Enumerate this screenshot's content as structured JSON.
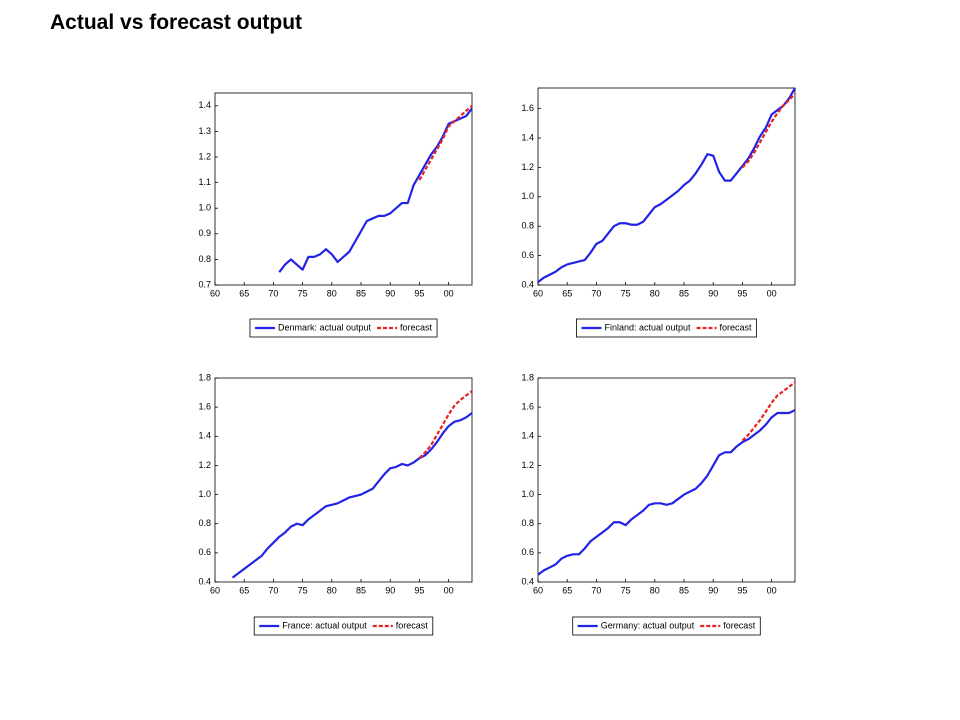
{
  "title": "Actual vs forecast output",
  "chart_data": [
    {
      "type": "line",
      "x": [
        1960,
        1961,
        1962,
        1963,
        1964,
        1965,
        1966,
        1967,
        1968,
        1969,
        1970,
        1971,
        1972,
        1973,
        1974,
        1975,
        1976,
        1977,
        1978,
        1979,
        1980,
        1981,
        1982,
        1983,
        1984,
        1985,
        1986,
        1987,
        1988,
        1989,
        1990,
        1991,
        1992,
        1993,
        1994,
        1995,
        1996,
        1997,
        1998,
        1999,
        2000,
        2001,
        2002,
        2003,
        2004
      ],
      "xlim": [
        1960,
        2004
      ],
      "xticks": [
        {
          "value": 1960,
          "label": "60"
        },
        {
          "value": 1965,
          "label": "65"
        },
        {
          "value": 1970,
          "label": "70"
        },
        {
          "value": 1975,
          "label": "75"
        },
        {
          "value": 1980,
          "label": "80"
        },
        {
          "value": 1985,
          "label": "85"
        },
        {
          "value": 1990,
          "label": "90"
        },
        {
          "value": 1995,
          "label": "95"
        },
        {
          "value": 2000,
          "label": "00"
        }
      ],
      "ylim": [
        0.7,
        1.45
      ],
      "yticks": [
        0.7,
        0.8,
        0.9,
        {
          "value": 1,
          "label": "1.0"
        },
        1.1,
        1.2,
        1.3,
        1.4
      ],
      "series": [
        {
          "name": "Denmark: actual output",
          "color": "#2323e8",
          "style": "solid",
          "values": [
            null,
            null,
            null,
            null,
            null,
            null,
            null,
            null,
            null,
            null,
            null,
            0.75,
            0.78,
            0.8,
            0.78,
            0.76,
            0.81,
            0.81,
            0.82,
            0.84,
            0.82,
            0.79,
            0.81,
            0.83,
            0.87,
            0.91,
            0.95,
            0.96,
            0.97,
            0.97,
            0.98,
            1.0,
            1.02,
            1.02,
            1.09,
            1.13,
            1.17,
            1.21,
            1.24,
            1.28,
            1.33,
            1.34,
            1.35,
            1.36,
            1.39
          ]
        },
        {
          "name": "forecast",
          "color": "#e82323",
          "style": "dashed",
          "values": [
            null,
            null,
            null,
            null,
            null,
            null,
            null,
            null,
            null,
            null,
            null,
            null,
            null,
            null,
            null,
            null,
            null,
            null,
            null,
            null,
            null,
            null,
            null,
            null,
            null,
            null,
            null,
            null,
            null,
            null,
            null,
            null,
            null,
            null,
            null,
            1.11,
            1.15,
            1.19,
            1.23,
            1.27,
            1.32,
            1.34,
            1.36,
            1.38,
            1.4
          ]
        }
      ]
    },
    {
      "type": "line",
      "x": [
        1960,
        1961,
        1962,
        1963,
        1964,
        1965,
        1966,
        1967,
        1968,
        1969,
        1970,
        1971,
        1972,
        1973,
        1974,
        1975,
        1976,
        1977,
        1978,
        1979,
        1980,
        1981,
        1982,
        1983,
        1984,
        1985,
        1986,
        1987,
        1988,
        1989,
        1990,
        1991,
        1992,
        1993,
        1994,
        1995,
        1996,
        1997,
        1998,
        1999,
        2000,
        2001,
        2002,
        2003,
        2004
      ],
      "xlim": [
        1960,
        2004
      ],
      "xticks": [
        {
          "value": 1960,
          "label": "60"
        },
        {
          "value": 1965,
          "label": "65"
        },
        {
          "value": 1970,
          "label": "70"
        },
        {
          "value": 1975,
          "label": "75"
        },
        {
          "value": 1980,
          "label": "80"
        },
        {
          "value": 1985,
          "label": "85"
        },
        {
          "value": 1990,
          "label": "90"
        },
        {
          "value": 1995,
          "label": "95"
        },
        {
          "value": 2000,
          "label": "00"
        }
      ],
      "ylim": [
        0.4,
        1.74
      ],
      "yticks": [
        0.4,
        0.6,
        0.8,
        {
          "value": 1,
          "label": "1.0"
        },
        1.2,
        1.4,
        1.6
      ],
      "series": [
        {
          "name": "Finland: actual output",
          "color": "#2323e8",
          "style": "solid",
          "values": [
            0.42,
            0.45,
            0.47,
            0.49,
            0.52,
            0.54,
            0.55,
            0.56,
            0.57,
            0.62,
            0.68,
            0.7,
            0.75,
            0.8,
            0.82,
            0.82,
            0.81,
            0.81,
            0.83,
            0.88,
            0.93,
            0.95,
            0.98,
            1.01,
            1.04,
            1.08,
            1.11,
            1.16,
            1.22,
            1.29,
            1.28,
            1.17,
            1.11,
            1.11,
            1.16,
            1.21,
            1.26,
            1.33,
            1.41,
            1.47,
            1.56,
            1.59,
            1.62,
            1.67,
            1.74
          ]
        },
        {
          "name": "forecast",
          "color": "#e82323",
          "style": "dashed",
          "values": [
            null,
            null,
            null,
            null,
            null,
            null,
            null,
            null,
            null,
            null,
            null,
            null,
            null,
            null,
            null,
            null,
            null,
            null,
            null,
            null,
            null,
            null,
            null,
            null,
            null,
            null,
            null,
            null,
            null,
            null,
            null,
            null,
            null,
            null,
            null,
            1.2,
            1.24,
            1.3,
            1.37,
            1.44,
            1.51,
            1.57,
            1.62,
            1.66,
            1.7
          ]
        }
      ]
    },
    {
      "type": "line",
      "x": [
        1960,
        1961,
        1962,
        1963,
        1964,
        1965,
        1966,
        1967,
        1968,
        1969,
        1970,
        1971,
        1972,
        1973,
        1974,
        1975,
        1976,
        1977,
        1978,
        1979,
        1980,
        1981,
        1982,
        1983,
        1984,
        1985,
        1986,
        1987,
        1988,
        1989,
        1990,
        1991,
        1992,
        1993,
        1994,
        1995,
        1996,
        1997,
        1998,
        1999,
        2000,
        2001,
        2002,
        2003,
        2004
      ],
      "xlim": [
        1960,
        2004
      ],
      "xticks": [
        {
          "value": 1960,
          "label": "60"
        },
        {
          "value": 1965,
          "label": "65"
        },
        {
          "value": 1970,
          "label": "70"
        },
        {
          "value": 1975,
          "label": "75"
        },
        {
          "value": 1980,
          "label": "80"
        },
        {
          "value": 1985,
          "label": "85"
        },
        {
          "value": 1990,
          "label": "90"
        },
        {
          "value": 1995,
          "label": "95"
        },
        {
          "value": 2000,
          "label": "00"
        }
      ],
      "ylim": [
        0.4,
        1.8
      ],
      "yticks": [
        0.4,
        0.6,
        0.8,
        {
          "value": 1,
          "label": "1.0"
        },
        1.2,
        1.4,
        1.6,
        1.8
      ],
      "series": [
        {
          "name": "France: actual output",
          "color": "#2323e8",
          "style": "solid",
          "values": [
            null,
            null,
            null,
            0.43,
            0.46,
            0.49,
            0.52,
            0.55,
            0.58,
            0.63,
            0.67,
            0.71,
            0.74,
            0.78,
            0.8,
            0.79,
            0.83,
            0.86,
            0.89,
            0.92,
            0.93,
            0.94,
            0.96,
            0.98,
            0.99,
            1.0,
            1.02,
            1.04,
            1.09,
            1.14,
            1.18,
            1.19,
            1.21,
            1.2,
            1.22,
            1.25,
            1.27,
            1.31,
            1.36,
            1.42,
            1.47,
            1.5,
            1.51,
            1.53,
            1.56
          ]
        },
        {
          "name": "forecast",
          "color": "#e82323",
          "style": "dashed",
          "values": [
            null,
            null,
            null,
            null,
            null,
            null,
            null,
            null,
            null,
            null,
            null,
            null,
            null,
            null,
            null,
            null,
            null,
            null,
            null,
            null,
            null,
            null,
            null,
            null,
            null,
            null,
            null,
            null,
            null,
            null,
            null,
            null,
            null,
            null,
            null,
            1.25,
            1.29,
            1.34,
            1.41,
            1.48,
            1.55,
            1.61,
            1.65,
            1.68,
            1.71
          ]
        }
      ]
    },
    {
      "type": "line",
      "x": [
        1960,
        1961,
        1962,
        1963,
        1964,
        1965,
        1966,
        1967,
        1968,
        1969,
        1970,
        1971,
        1972,
        1973,
        1974,
        1975,
        1976,
        1977,
        1978,
        1979,
        1980,
        1981,
        1982,
        1983,
        1984,
        1985,
        1986,
        1987,
        1988,
        1989,
        1990,
        1991,
        1992,
        1993,
        1994,
        1995,
        1996,
        1997,
        1998,
        1999,
        2000,
        2001,
        2002,
        2003,
        2004
      ],
      "xlim": [
        1960,
        2004
      ],
      "xticks": [
        {
          "value": 1960,
          "label": "60"
        },
        {
          "value": 1965,
          "label": "65"
        },
        {
          "value": 1970,
          "label": "70"
        },
        {
          "value": 1975,
          "label": "75"
        },
        {
          "value": 1980,
          "label": "80"
        },
        {
          "value": 1985,
          "label": "85"
        },
        {
          "value": 1990,
          "label": "90"
        },
        {
          "value": 1995,
          "label": "95"
        },
        {
          "value": 2000,
          "label": "00"
        }
      ],
      "ylim": [
        0.4,
        1.8
      ],
      "yticks": [
        0.4,
        0.6,
        0.8,
        {
          "value": 1,
          "label": "1.0"
        },
        1.2,
        1.4,
        1.6,
        1.8
      ],
      "series": [
        {
          "name": "Germany: actual output",
          "color": "#2323e8",
          "style": "solid",
          "values": [
            0.45,
            0.48,
            0.5,
            0.52,
            0.56,
            0.58,
            0.59,
            0.59,
            0.63,
            0.68,
            0.71,
            0.74,
            0.77,
            0.81,
            0.81,
            0.79,
            0.83,
            0.86,
            0.89,
            0.93,
            0.94,
            0.94,
            0.93,
            0.94,
            0.97,
            1.0,
            1.02,
            1.04,
            1.08,
            1.13,
            1.2,
            1.27,
            1.29,
            1.29,
            1.33,
            1.36,
            1.38,
            1.41,
            1.44,
            1.48,
            1.53,
            1.56,
            1.56,
            1.56,
            1.58
          ]
        },
        {
          "name": "forecast",
          "color": "#e82323",
          "style": "dashed",
          "values": [
            null,
            null,
            null,
            null,
            null,
            null,
            null,
            null,
            null,
            null,
            null,
            null,
            null,
            null,
            null,
            null,
            null,
            null,
            null,
            null,
            null,
            null,
            null,
            null,
            null,
            null,
            null,
            null,
            null,
            null,
            null,
            null,
            null,
            null,
            null,
            1.37,
            1.41,
            1.46,
            1.51,
            1.57,
            1.63,
            1.68,
            1.71,
            1.74,
            1.77
          ]
        }
      ]
    }
  ]
}
